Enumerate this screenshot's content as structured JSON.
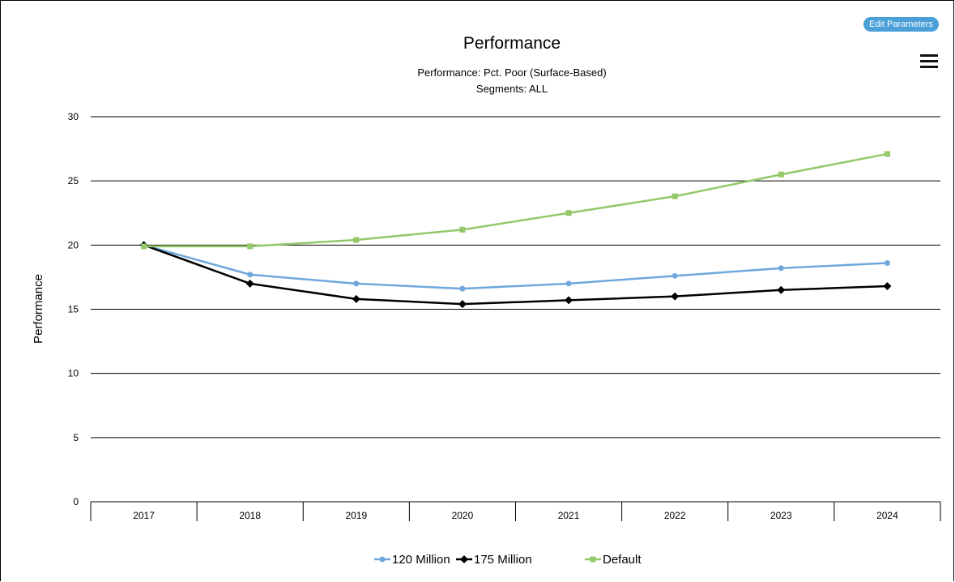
{
  "toolbar": {
    "edit_label": "Edit Parameters",
    "menu_icon": "hamburger-menu-icon"
  },
  "chart_data": {
    "type": "line",
    "title": "Performance",
    "subtitle_lines": [
      "Performance: Pct. Poor (Surface-Based)",
      "Segments: ALL"
    ],
    "xlabel": "",
    "ylabel": "Performance",
    "categories": [
      "2017",
      "2018",
      "2019",
      "2020",
      "2021",
      "2022",
      "2023",
      "2024"
    ],
    "ylim": [
      0,
      30
    ],
    "yticks": [
      0,
      5,
      10,
      15,
      20,
      25,
      30
    ],
    "grid": true,
    "legend_position": "bottom",
    "series": [
      {
        "name": "120 Million",
        "color": "#6fa8dc",
        "marker": "circle",
        "values": [
          20.0,
          17.7,
          17.0,
          16.6,
          17.0,
          17.6,
          18.2,
          18.6
        ]
      },
      {
        "name": "175 Million",
        "color": "#000000",
        "marker": "diamond",
        "values": [
          20.0,
          17.0,
          15.8,
          15.4,
          15.7,
          16.0,
          16.5,
          16.8
        ]
      },
      {
        "name": "Default",
        "color": "#93c86b",
        "marker": "square",
        "values": [
          19.9,
          19.9,
          20.4,
          21.2,
          22.5,
          23.8,
          25.5,
          27.1
        ]
      }
    ]
  }
}
